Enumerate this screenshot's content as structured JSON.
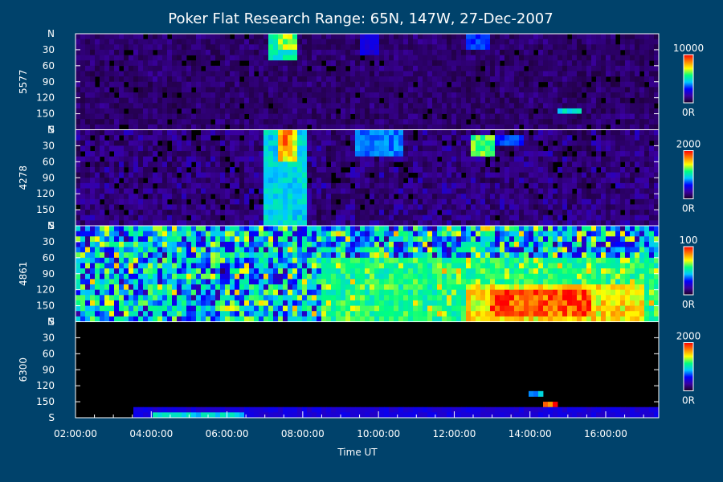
{
  "chart_data": {
    "type": "heatmap",
    "title": "Poker Flat Research Range: 65N, 147W, 27-Dec-2007",
    "xlabel": "Time UT",
    "x_ticks": [
      "02:00:00",
      "04:00:00",
      "06:00:00",
      "08:00:00",
      "10:00:00",
      "12:00:00",
      "14:00:00",
      "16:00:00"
    ],
    "x_tick_hours": [
      2,
      4,
      6,
      8,
      10,
      12,
      14,
      16
    ],
    "x_range_hours": [
      2.0,
      17.4
    ],
    "y_ticks": [
      "N",
      "30",
      "60",
      "90",
      "120",
      "150",
      "S"
    ],
    "y_tick_values": [
      0,
      30,
      60,
      90,
      120,
      150,
      180
    ],
    "y_range": [
      0,
      180
    ],
    "colormap": [
      "#1a0026",
      "#3a00a0",
      "#0000ff",
      "#00c8ff",
      "#00ff80",
      "#ffff00",
      "#ff8000",
      "#ff0000"
    ],
    "panels": [
      {
        "label": "5577",
        "cbar_max": "10000",
        "cbar_min": "0R",
        "background": 0.08,
        "noise": 0.06,
        "features": [
          {
            "t": [
              7.1,
              7.9
            ],
            "y": [
              0,
              55
            ],
            "level": 0.55
          },
          {
            "t": [
              7.4,
              7.8
            ],
            "y": [
              0,
              25
            ],
            "level": 0.7
          },
          {
            "t": [
              9.5,
              10.0
            ],
            "y": [
              0,
              40
            ],
            "level": 0.25
          },
          {
            "t": [
              12.3,
              13.0
            ],
            "y": [
              0,
              30
            ],
            "level": 0.35
          },
          {
            "t": [
              14.7,
              15.3
            ],
            "y": [
              138,
              150
            ],
            "level": 0.5
          }
        ]
      },
      {
        "label": "4278",
        "cbar_max": "2000",
        "cbar_min": "0R",
        "background": 0.1,
        "noise": 0.12,
        "features": [
          {
            "t": [
              7.0,
              8.1
            ],
            "y": [
              0,
              180
            ],
            "level": 0.5
          },
          {
            "t": [
              7.3,
              7.9
            ],
            "y": [
              0,
              60
            ],
            "level": 0.8
          },
          {
            "t": [
              7.4,
              7.7
            ],
            "y": [
              0,
              25
            ],
            "level": 0.95
          },
          {
            "t": [
              9.4,
              10.6
            ],
            "y": [
              5,
              50
            ],
            "level": 0.4
          },
          {
            "t": [
              12.4,
              13.1
            ],
            "y": [
              10,
              45
            ],
            "level": 0.65
          },
          {
            "t": [
              13.1,
              13.8
            ],
            "y": [
              10,
              30
            ],
            "level": 0.35
          }
        ]
      },
      {
        "label": "4861",
        "cbar_max": "100",
        "cbar_min": "0R",
        "background": 0.45,
        "noise": 0.3,
        "features": [
          {
            "t": [
              2.2,
              2.5
            ],
            "y": [
              0,
              180
            ],
            "level": 0.1
          },
          {
            "t": [
              6.9,
              8.1
            ],
            "y": [
              20,
              150
            ],
            "level": 0.08
          },
          {
            "t": [
              8.5,
              17.4
            ],
            "y": [
              60,
              180
            ],
            "level": 0.6
          },
          {
            "t": [
              12.3,
              17.0
            ],
            "y": [
              110,
              180
            ],
            "level": 0.8
          },
          {
            "t": [
              13.0,
              15.6
            ],
            "y": [
              120,
              170
            ],
            "level": 0.98
          }
        ]
      },
      {
        "label": "6300",
        "cbar_max": "2000",
        "cbar_min": "0R",
        "background": 0.01,
        "noise": 0.02,
        "features": [
          {
            "t": [
              3.5,
              17.4
            ],
            "y": [
              165,
              180
            ],
            "level": 0.25
          },
          {
            "t": [
              4.0,
              6.5
            ],
            "y": [
              174,
              180
            ],
            "level": 0.5
          },
          {
            "t": [
              13.9,
              14.4
            ],
            "y": [
              128,
              138
            ],
            "level": 0.45
          },
          {
            "t": [
              14.4,
              14.7
            ],
            "y": [
              150,
              156
            ],
            "level": 0.98
          }
        ]
      }
    ],
    "grid": false,
    "legend": "colorbars right"
  }
}
